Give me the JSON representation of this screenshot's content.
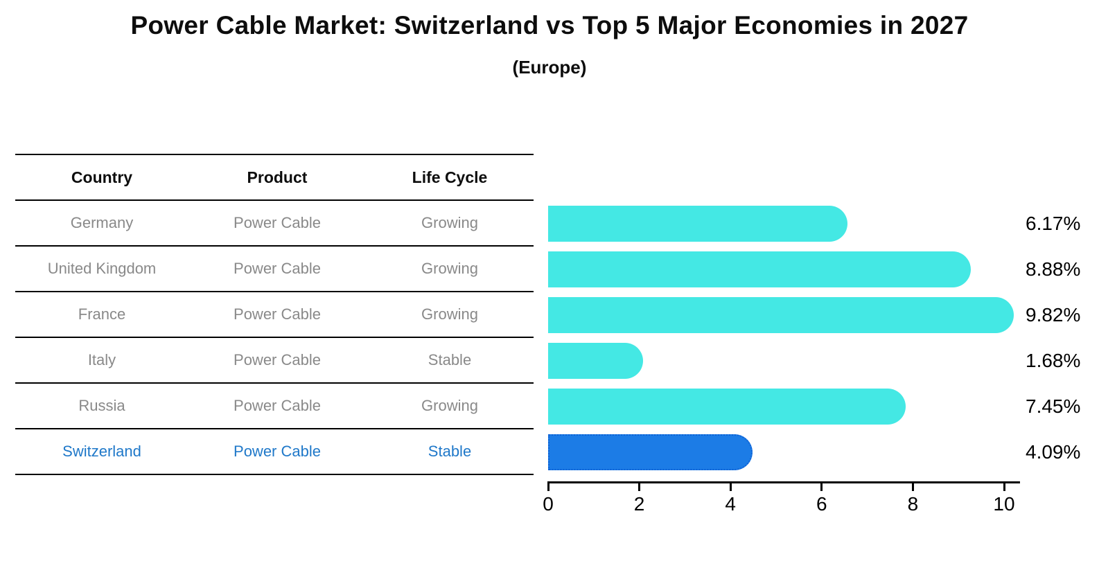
{
  "title": "Power Cable Market: Switzerland vs Top 5 Major Economies in 2027",
  "subtitle": "(Europe)",
  "table": {
    "headers": [
      "Country",
      "Product",
      "Life Cycle"
    ],
    "rows": [
      {
        "country": "Germany",
        "product": "Power Cable",
        "life_cycle": "Growing",
        "value": 6.17,
        "label": "6.17%",
        "highlight": false
      },
      {
        "country": "United Kingdom",
        "product": "Power Cable",
        "life_cycle": "Growing",
        "value": 8.88,
        "label": "8.88%",
        "highlight": false
      },
      {
        "country": "France",
        "product": "Power Cable",
        "life_cycle": "Growing",
        "value": 9.82,
        "label": "9.82%",
        "highlight": false
      },
      {
        "country": "Italy",
        "product": "Power Cable",
        "life_cycle": "Stable",
        "value": 1.68,
        "label": "1.68%",
        "highlight": false
      },
      {
        "country": "Russia",
        "product": "Power Cable",
        "life_cycle": "Growing",
        "value": 7.45,
        "label": "7.45%",
        "highlight": false
      },
      {
        "country": "Switzerland",
        "product": "Power Cable",
        "life_cycle": "Stable",
        "value": 4.09,
        "label": "4.09%",
        "highlight": true
      }
    ]
  },
  "chart_data": {
    "type": "bar",
    "orientation": "horizontal",
    "title": "Power Cable Market: Switzerland vs Top 5 Major Economies in 2027 (Europe)",
    "categories": [
      "Germany",
      "United Kingdom",
      "France",
      "Italy",
      "Russia",
      "Switzerland"
    ],
    "values": [
      6.17,
      8.88,
      9.82,
      1.68,
      7.45,
      4.09
    ],
    "value_labels": [
      "6.17%",
      "8.88%",
      "9.82%",
      "1.68%",
      "7.45%",
      "4.09%"
    ],
    "xlabel": "",
    "ylabel": "",
    "xlim": [
      0,
      10.3
    ],
    "xticks": [
      0,
      2,
      4,
      6,
      8,
      10
    ],
    "grid": false,
    "legend": false,
    "highlight_index": 5
  },
  "colors": {
    "bar": "#44e8e4",
    "highlight_bar": "#1c7ce6",
    "highlight_bar_border": "#0f62d6",
    "highlight_text": "#1f78c9",
    "row_text": "#898989",
    "axis": "#000000"
  }
}
